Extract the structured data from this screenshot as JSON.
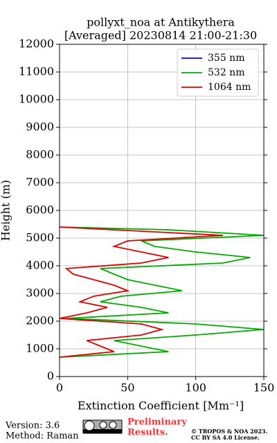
{
  "chart_data": {
    "type": "profile",
    "title": "pollyxt_noa at Antikythera",
    "subtitle": "[Averaged] 20230814 21:00-21:30",
    "x_label": "Extinction Coefficient [Mm⁻¹]",
    "y_label": "Height (m)",
    "heights": [
      700,
      900,
      1100,
      1300,
      1500,
      1700,
      1900,
      2100,
      2300,
      2500,
      2700,
      2900,
      3100,
      3300,
      3500,
      3700,
      3900,
      4100,
      4300,
      4500,
      4700,
      4900,
      5100,
      5300,
      5400
    ],
    "series": [
      {
        "name": "355 nm",
        "color": "#0000ff",
        "values": [
          null,
          null,
          null,
          null,
          null,
          null,
          null,
          null,
          null,
          null,
          null,
          null,
          null,
          null,
          null,
          null,
          null,
          null,
          null,
          null,
          null,
          null,
          null,
          null,
          null
        ]
      },
      {
        "name": "532 nm",
        "color": "#00aa00",
        "values": [
          0,
          80,
          60,
          40,
          100,
          150,
          100,
          5,
          80,
          60,
          30,
          45,
          90,
          70,
          50,
          40,
          30,
          120,
          140,
          100,
          70,
          60,
          150,
          80,
          0
        ]
      },
      {
        "name": "1064 nm",
        "color": "#dd0000",
        "values": [
          0,
          40,
          30,
          20,
          60,
          75,
          60,
          0,
          20,
          35,
          15,
          25,
          50,
          40,
          25,
          10,
          5,
          60,
          80,
          60,
          40,
          50,
          120,
          40,
          0
        ]
      }
    ],
    "xlim": [
      0,
      150
    ],
    "xticks": [
      0,
      50,
      100,
      150
    ],
    "ylim": [
      0,
      12000
    ],
    "yticks": [
      0,
      1000,
      2000,
      3000,
      4000,
      5000,
      6000,
      7000,
      8000,
      9000,
      10000,
      11000,
      12000
    ],
    "grid": true,
    "legend_position": "upper right",
    "footer": {
      "version": "Version: 3.6",
      "method": "Method: Raman",
      "preliminary": [
        "Preliminary",
        "Results."
      ],
      "copyright": "© TROPOS & NOA 2023.",
      "license": "CC BY SA 4.0 License."
    }
  }
}
